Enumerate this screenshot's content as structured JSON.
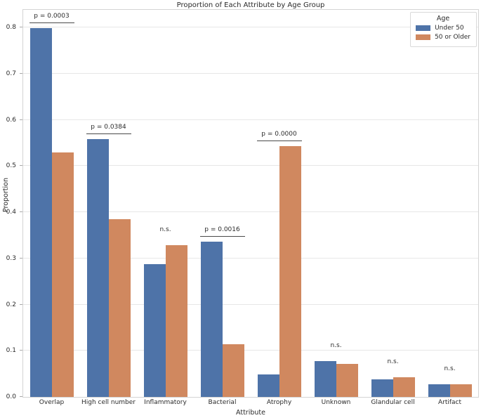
{
  "chart_data": {
    "type": "bar",
    "title": "Proportion of Each Attribute by Age Group",
    "xlabel": "Attribute",
    "ylabel": "Proportion",
    "categories": [
      "Overlap",
      "High cell number",
      "Inflammatory",
      "Bacterial",
      "Atrophy",
      "Unknown",
      "Glandular cell",
      "Artifact"
    ],
    "series": [
      {
        "name": "Under 50",
        "color": "#4E73A8",
        "values": [
          0.798,
          0.558,
          0.288,
          0.336,
          0.049,
          0.077,
          0.038,
          0.028
        ]
      },
      {
        "name": "50 or Older",
        "color": "#D0885F",
        "values": [
          0.529,
          0.385,
          0.329,
          0.114,
          0.543,
          0.071,
          0.043,
          0.028
        ]
      }
    ],
    "annotations": [
      {
        "label": "p = 0.0003",
        "underline": true
      },
      {
        "label": "p = 0.0384",
        "underline": true
      },
      {
        "label": "n.s.",
        "underline": false
      },
      {
        "label": "p = 0.0016",
        "underline": true
      },
      {
        "label": "p = 0.0000",
        "underline": true
      },
      {
        "label": "n.s.",
        "underline": false
      },
      {
        "label": "n.s.",
        "underline": false
      },
      {
        "label": "n.s.",
        "underline": false
      }
    ],
    "legend_title": "Age",
    "legend_position": "upper right",
    "ylim": [
      0,
      0.838
    ],
    "yticks": [
      "0.0",
      "0.1",
      "0.2",
      "0.3",
      "0.4",
      "0.5",
      "0.6",
      "0.7",
      "0.8"
    ],
    "grid": true
  },
  "colors": {
    "grid": "#e7e7e7",
    "spine": "#d4d4d4",
    "text": "#2b2b2b",
    "annotation_line": "#4a4a4a",
    "background": "#ffffff"
  }
}
